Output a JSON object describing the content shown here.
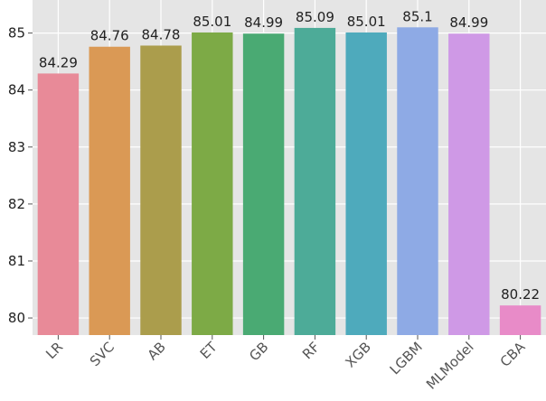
{
  "chart_data": {
    "type": "bar",
    "categories": [
      "LR",
      "SVC",
      "AB",
      "ET",
      "GB",
      "RF",
      "XGB",
      "LGBM",
      "MLModel",
      "CBA"
    ],
    "values": [
      84.29,
      84.76,
      84.78,
      85.01,
      84.99,
      85.09,
      85.01,
      85.1,
      84.99,
      80.22
    ],
    "value_labels": [
      "84.29",
      "84.76",
      "84.78",
      "85.01",
      "84.99",
      "85.09",
      "85.01",
      "85.1",
      "84.99",
      "80.22"
    ],
    "colors": [
      "#e88a98",
      "#da9955",
      "#ab9d4c",
      "#7daa46",
      "#4aaa73",
      "#4dab98",
      "#4eaabc",
      "#8eaae5",
      "#cf99e6",
      "#e88bc8"
    ],
    "title": "",
    "xlabel": "",
    "ylabel": "",
    "ylim": [
      79.7,
      85.58
    ],
    "yticks": [
      80,
      81,
      82,
      83,
      84,
      85
    ],
    "grid": true,
    "background": "#e5e5e5",
    "grid_color": "#ffffff"
  }
}
